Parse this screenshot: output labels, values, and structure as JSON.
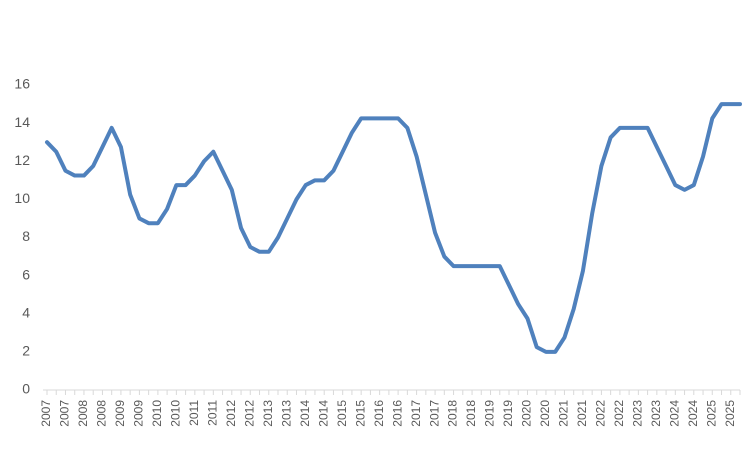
{
  "chart_data": {
    "type": "line",
    "categories": [
      "2007",
      null,
      "2007",
      null,
      "2008",
      null,
      "2008",
      null,
      "2009",
      null,
      "2009",
      null,
      "2010",
      null,
      "2010",
      null,
      "2011",
      null,
      "2011",
      null,
      "2012",
      null,
      "2012",
      null,
      "2013",
      null,
      "2013",
      null,
      "2014",
      null,
      "2014",
      null,
      "2015",
      null,
      "2015",
      null,
      "2016",
      null,
      "2016",
      null,
      "2017",
      null,
      "2017",
      null,
      "2018",
      null,
      "2018",
      null,
      "2019",
      null,
      "2019",
      null,
      "2020",
      null,
      "2020",
      null,
      "2021",
      null,
      "2021",
      null,
      "2022",
      null,
      "2022",
      null,
      "2023",
      null,
      "2023",
      null,
      "2024",
      null,
      "2024",
      null,
      "2025",
      null,
      "2025",
      null
    ],
    "values": [
      13,
      12.5,
      11.5,
      11.25,
      11.25,
      11.75,
      12.75,
      13.75,
      12.75,
      10.25,
      9,
      8.75,
      8.75,
      9.5,
      10.75,
      10.75,
      11.25,
      12,
      12.5,
      11.5,
      10.5,
      8.5,
      7.5,
      7.25,
      7.25,
      8,
      9,
      10,
      10.75,
      11,
      11,
      11.5,
      12.5,
      13.5,
      14.25,
      14.25,
      14.25,
      14.25,
      14.25,
      13.75,
      12.25,
      10.25,
      8.25,
      7,
      6.5,
      6.5,
      6.5,
      6.5,
      6.5,
      6.5,
      5.5,
      4.5,
      3.75,
      2.25,
      2,
      2,
      2.75,
      4.25,
      6.25,
      9.25,
      11.75,
      13.25,
      13.75,
      13.75,
      13.75,
      13.75,
      12.75,
      11.75,
      10.75,
      10.5,
      10.75,
      12.25,
      14.25,
      15,
      15,
      15
    ],
    "color": "#4f81bd",
    "ylim": [
      0,
      16
    ],
    "yticks": [
      0,
      2,
      4,
      6,
      8,
      10,
      12,
      14,
      16
    ],
    "grid": false
  }
}
